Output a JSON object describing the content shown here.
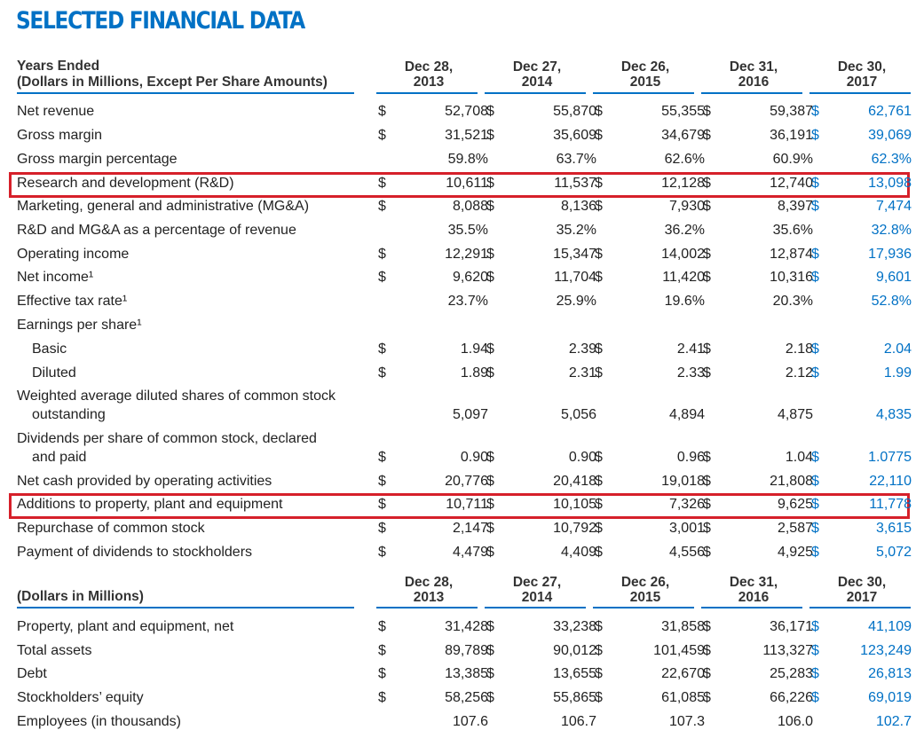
{
  "title": "SELECTED FINANCIAL DATA",
  "section1": {
    "label_line1": "Years Ended",
    "label_line2": "(Dollars in Millions, Except Per Share Amounts)"
  },
  "section2": {
    "label": "(Dollars in Millions)"
  },
  "columns": [
    {
      "line1": "Dec 28,",
      "line2": "2013"
    },
    {
      "line1": "Dec 27,",
      "line2": "2014"
    },
    {
      "line1": "Dec 26,",
      "line2": "2015"
    },
    {
      "line1": "Dec 31,",
      "line2": "2016"
    },
    {
      "line1": "Dec 30,",
      "line2": "2017"
    }
  ],
  "currency_symbol": "$",
  "highlight_color": "#d6202a",
  "accent_color": "#0071c5",
  "rows1": [
    {
      "label": "Net revenue",
      "dollar": true,
      "values": [
        "52,708",
        "55,870",
        "55,355",
        "59,387",
        "62,761"
      ]
    },
    {
      "label": "Gross margin",
      "dollar": true,
      "values": [
        "31,521",
        "35,609",
        "34,679",
        "36,191",
        "39,069"
      ]
    },
    {
      "label": "Gross margin percentage",
      "dollar": false,
      "values": [
        "59.8%",
        "63.7%",
        "62.6%",
        "60.9%",
        "62.3%"
      ]
    },
    {
      "label": "Research and development (R&D)",
      "dollar": true,
      "highlighted": true,
      "values": [
        "10,611",
        "11,537",
        "12,128",
        "12,740",
        "13,098"
      ]
    },
    {
      "label": "Marketing, general and administrative (MG&A)",
      "dollar": true,
      "values": [
        "8,088",
        "8,136",
        "7,930",
        "8,397",
        "7,474"
      ]
    },
    {
      "label": "R&D and MG&A as a percentage of revenue",
      "dollar": false,
      "values": [
        "35.5%",
        "35.2%",
        "36.2%",
        "35.6%",
        "32.8%"
      ]
    },
    {
      "label": "Operating income",
      "dollar": true,
      "values": [
        "12,291",
        "15,347",
        "14,002",
        "12,874",
        "17,936"
      ]
    },
    {
      "label": "Net income¹",
      "dollar": true,
      "values": [
        "9,620",
        "11,704",
        "11,420",
        "10,316",
        "9,601"
      ]
    },
    {
      "label": "Effective tax rate¹",
      "dollar": false,
      "values": [
        "23.7%",
        "25.9%",
        "19.6%",
        "20.3%",
        "52.8%"
      ]
    },
    {
      "label": "Earnings per share¹",
      "dollar": false,
      "values": []
    },
    {
      "label": "Basic",
      "indent": true,
      "dollar": true,
      "values": [
        "1.94",
        "2.39",
        "2.41",
        "2.18",
        "2.04"
      ]
    },
    {
      "label": "Diluted",
      "indent": true,
      "dollar": true,
      "values": [
        "1.89",
        "2.31",
        "2.33",
        "2.12",
        "1.99"
      ]
    },
    {
      "label": "Weighted average diluted shares of common stock",
      "label2": "outstanding",
      "dollar": false,
      "values": [
        "5,097",
        "5,056",
        "4,894",
        "4,875",
        "4,835"
      ]
    },
    {
      "label": "Dividends per share of common stock, declared",
      "label2": "and paid",
      "dollar": true,
      "values": [
        "0.90",
        "0.90",
        "0.96",
        "1.04",
        "1.0775"
      ]
    },
    {
      "label": "Net cash provided by operating activities",
      "dollar": true,
      "values": [
        "20,776",
        "20,418",
        "19,018",
        "21,808",
        "22,110"
      ]
    },
    {
      "label": "Additions to property, plant and equipment",
      "dollar": true,
      "highlighted": true,
      "values": [
        "10,711",
        "10,105",
        "7,326",
        "9,625",
        "11,778"
      ]
    },
    {
      "label": "Repurchase of common stock",
      "dollar": true,
      "values": [
        "2,147",
        "10,792",
        "3,001",
        "2,587",
        "3,615"
      ]
    },
    {
      "label": "Payment of dividends to stockholders",
      "dollar": true,
      "values": [
        "4,479",
        "4,409",
        "4,556",
        "4,925",
        "5,072"
      ]
    }
  ],
  "rows2": [
    {
      "label": "Property, plant and equipment, net",
      "dollar": true,
      "values": [
        "31,428",
        "33,238",
        "31,858",
        "36,171",
        "41,109"
      ]
    },
    {
      "label": "Total assets",
      "dollar": true,
      "values": [
        "89,789",
        "90,012",
        "101,459",
        "113,327",
        "123,249"
      ]
    },
    {
      "label": "Debt",
      "dollar": true,
      "values": [
        "13,385",
        "13,655",
        "22,670",
        "25,283",
        "26,813"
      ]
    },
    {
      "label": "Stockholders’ equity",
      "dollar": true,
      "values": [
        "58,256",
        "55,865",
        "61,085",
        "66,226",
        "69,019"
      ]
    },
    {
      "label": "Employees (in thousands)",
      "dollar": false,
      "values": [
        "107.6",
        "106.7",
        "107.3",
        "106.0",
        "102.7"
      ]
    }
  ]
}
